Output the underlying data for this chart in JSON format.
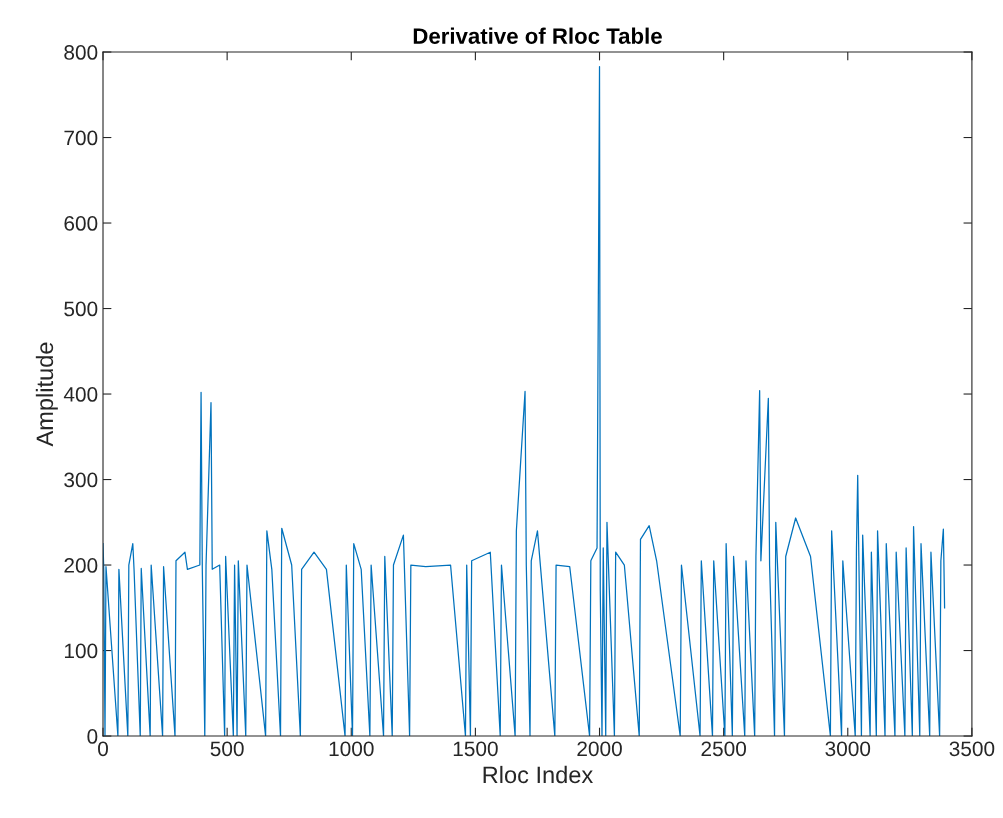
{
  "chart_data": {
    "type": "line",
    "title": "Derivative of Rloc Table",
    "xlabel": "Rloc Index",
    "ylabel": "Amplitude",
    "xlim": [
      0,
      3500
    ],
    "xticks": [
      0,
      500,
      1000,
      1500,
      2000,
      2500,
      3000,
      3500
    ],
    "ylim": [
      0,
      800
    ],
    "yticks": [
      0,
      100,
      200,
      300,
      400,
      500,
      600,
      700,
      800
    ],
    "grid": false,
    "legend": false,
    "series": [
      {
        "color": "#0072bd",
        "x": [
          0,
          3,
          8,
          12,
          60,
          64,
          100,
          104,
          120,
          125,
          150,
          154,
          190,
          194,
          240,
          244,
          290,
          294,
          330,
          340,
          390,
          395,
          400,
          410,
          415,
          435,
          440,
          470,
          490,
          494,
          525,
          530,
          540,
          545,
          575,
          580,
          655,
          660,
          680,
          715,
          720,
          760,
          795,
          800,
          850,
          900,
          975,
          980,
          1005,
          1010,
          1040,
          1075,
          1080,
          1130,
          1135,
          1165,
          1170,
          1210,
          1235,
          1240,
          1300,
          1400,
          1460,
          1465,
          1480,
          1485,
          1560,
          1600,
          1605,
          1660,
          1665,
          1700,
          1705,
          1720,
          1725,
          1750,
          1820,
          1825,
          1880,
          1960,
          1965,
          1990,
          2000,
          2003,
          2010,
          2015,
          2025,
          2030,
          2060,
          2065,
          2100,
          2160,
          2165,
          2200,
          2230,
          2325,
          2330,
          2405,
          2410,
          2455,
          2460,
          2505,
          2510,
          2535,
          2540,
          2585,
          2590,
          2625,
          2630,
          2645,
          2650,
          2680,
          2685,
          2705,
          2710,
          2745,
          2750,
          2790,
          2850,
          2930,
          2935,
          2975,
          2980,
          3030,
          3035,
          3040,
          3045,
          3055,
          3060,
          3090,
          3095,
          3115,
          3120,
          3150,
          3155,
          3190,
          3195,
          3230,
          3235,
          3260,
          3265,
          3290,
          3295,
          3330,
          3335,
          3370,
          3375,
          3385,
          3390
        ],
        "values": [
          225,
          195,
          0,
          198,
          0,
          195,
          0,
          200,
          225,
          195,
          0,
          196,
          0,
          200,
          0,
          198,
          0,
          205,
          215,
          195,
          200,
          402,
          195,
          0,
          200,
          390,
          195,
          200,
          0,
          210,
          0,
          200,
          0,
          205,
          0,
          200,
          0,
          240,
          195,
          0,
          243,
          200,
          0,
          195,
          215,
          195,
          0,
          200,
          0,
          225,
          195,
          0,
          200,
          0,
          210,
          0,
          200,
          235,
          0,
          200,
          198,
          200,
          0,
          200,
          0,
          205,
          215,
          0,
          200,
          0,
          240,
          403,
          200,
          0,
          205,
          240,
          0,
          200,
          198,
          0,
          205,
          220,
          783,
          170,
          0,
          220,
          0,
          250,
          0,
          215,
          200,
          0,
          230,
          246,
          205,
          0,
          200,
          0,
          205,
          0,
          205,
          0,
          225,
          0,
          210,
          0,
          205,
          0,
          210,
          404,
          205,
          395,
          200,
          0,
          250,
          0,
          210,
          255,
          210,
          0,
          240,
          0,
          205,
          0,
          220,
          305,
          200,
          0,
          235,
          0,
          215,
          0,
          240,
          0,
          225,
          0,
          215,
          0,
          220,
          0,
          245,
          0,
          225,
          0,
          215,
          0,
          205,
          242,
          150
        ]
      }
    ]
  }
}
